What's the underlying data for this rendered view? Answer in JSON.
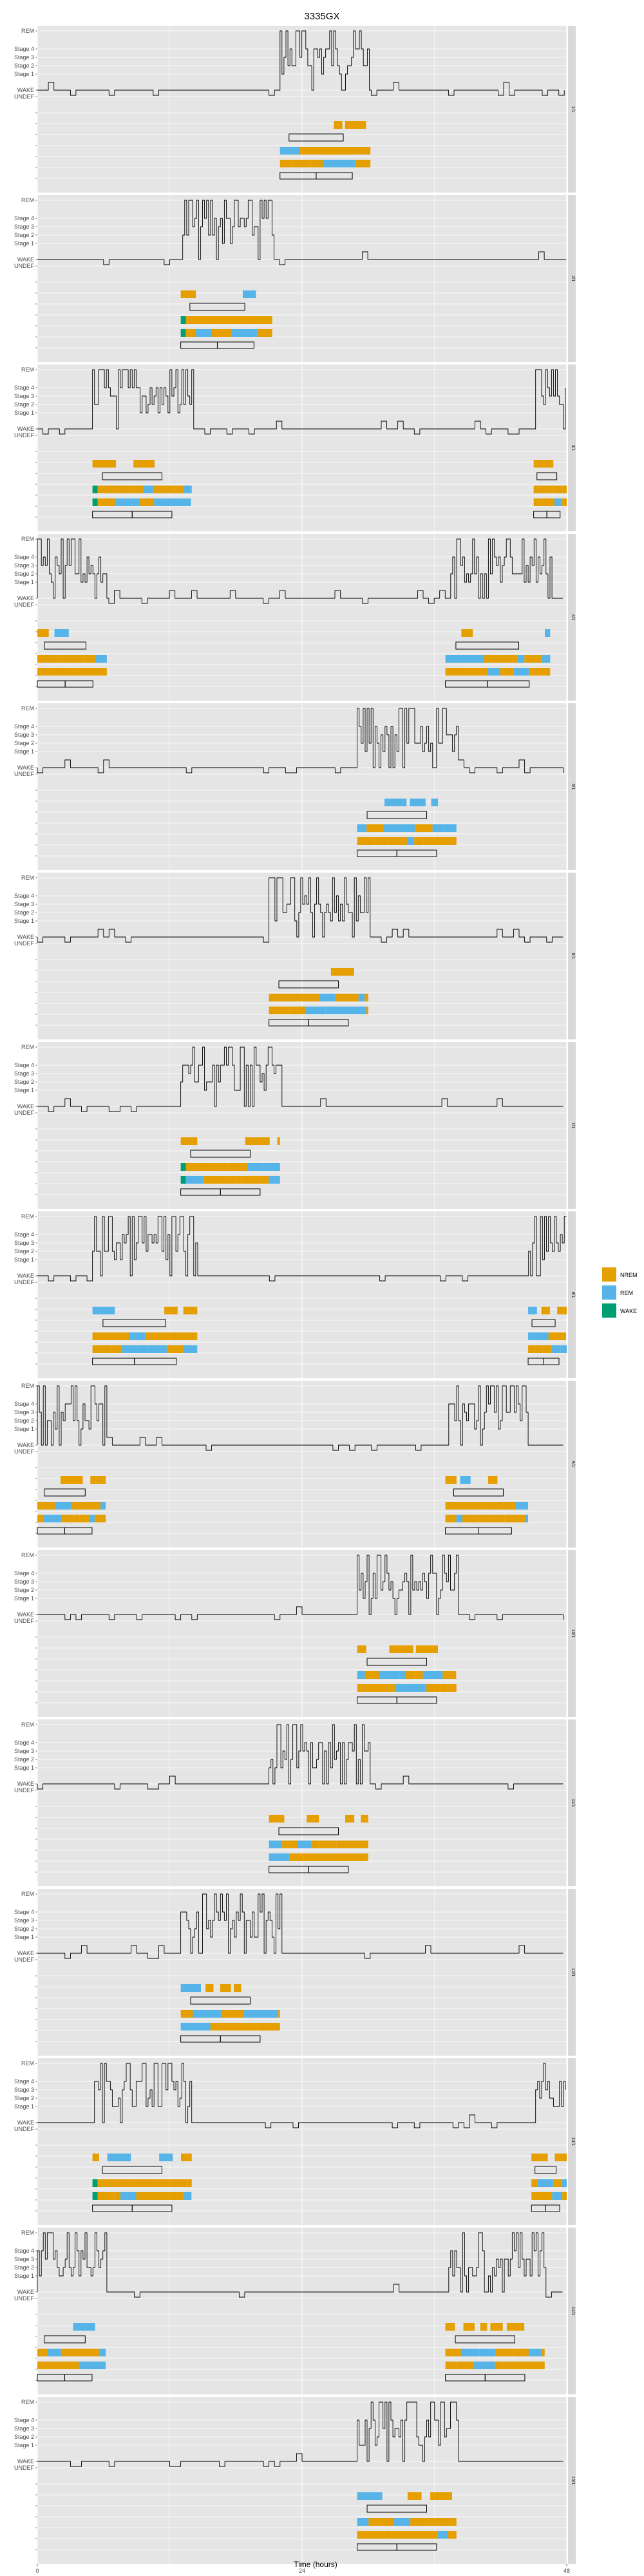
{
  "chart_data": {
    "type": "hypnogram",
    "title": "3335GX",
    "xlabel": "Time (hours)",
    "xlim": [
      0,
      48
    ],
    "xticks": [
      "0",
      "24",
      "48"
    ],
    "ylevels": [
      "REM",
      "Stage 4",
      "Stage 3",
      "Stage 2",
      "Stage 1",
      "WAKE",
      "UNDEF"
    ],
    "legend": {
      "position": "right",
      "entries": [
        {
          "name": "NREM",
          "color": "#E69F00"
        },
        {
          "name": "REM",
          "color": "#56B4E9"
        },
        {
          "name": "WAKE",
          "color": "#009E73"
        }
      ]
    },
    "colors": {
      "panel_bg": "#E5E5E5",
      "grid": "#FFFFFF",
      "strip_bg": "#D9D9D9",
      "line": "#000000"
    },
    "nights": [
      {
        "label": "1/1",
        "start": 22.0,
        "end": 30.2,
        "wake_start": false,
        "wake_end": false
      },
      {
        "label": "2/1",
        "start": 13.0,
        "end": 21.3,
        "wake_start": false,
        "wake_end": true
      },
      {
        "label": "3/1",
        "start": 5.0,
        "end": 14.0,
        "wake_start": true,
        "wake_end": false,
        "second_start": 45.0,
        "second_end": 48.0
      },
      {
        "label": "4/1",
        "start": 0.0,
        "end": 6.3,
        "wake_start": false,
        "wake_end": false,
        "second_start": 37.0,
        "second_end": 46.5
      },
      {
        "label": "5/1",
        "start": 29.0,
        "end": 38.0,
        "wake_start": false,
        "wake_end": false
      },
      {
        "label": "6/1",
        "start": 21.0,
        "end": 30.0,
        "wake_start": false,
        "wake_end": false
      },
      {
        "label": "7/1",
        "start": 13.0,
        "end": 22.0,
        "wake_start": true,
        "wake_end": false
      },
      {
        "label": "8/1",
        "start": 5.0,
        "end": 14.5,
        "wake_start": false,
        "wake_end": false,
        "second_start": 44.5,
        "second_end": 48.0
      },
      {
        "label": "9/1",
        "start": 0.0,
        "end": 6.2,
        "wake_start": false,
        "wake_end": false,
        "second_start": 37.0,
        "second_end": 44.5
      },
      {
        "label": "10/1",
        "start": 29.0,
        "end": 38.0,
        "wake_start": false,
        "wake_end": false
      },
      {
        "label": "11/1",
        "start": 21.0,
        "end": 30.0,
        "wake_start": false,
        "wake_end": false
      },
      {
        "label": "12/1",
        "start": 13.0,
        "end": 22.0,
        "wake_start": false,
        "wake_end": false
      },
      {
        "label": "13/1",
        "start": 5.0,
        "end": 14.0,
        "wake_start": true,
        "wake_end": false,
        "second_start": 44.8,
        "second_end": 48.0
      },
      {
        "label": "14/1",
        "start": 0.0,
        "end": 6.2,
        "wake_start": false,
        "wake_end": false,
        "second_start": 37.0,
        "second_end": 46.0
      },
      {
        "label": "15/1",
        "start": 29.0,
        "end": 38.0,
        "wake_start": false,
        "wake_end": false
      }
    ]
  }
}
